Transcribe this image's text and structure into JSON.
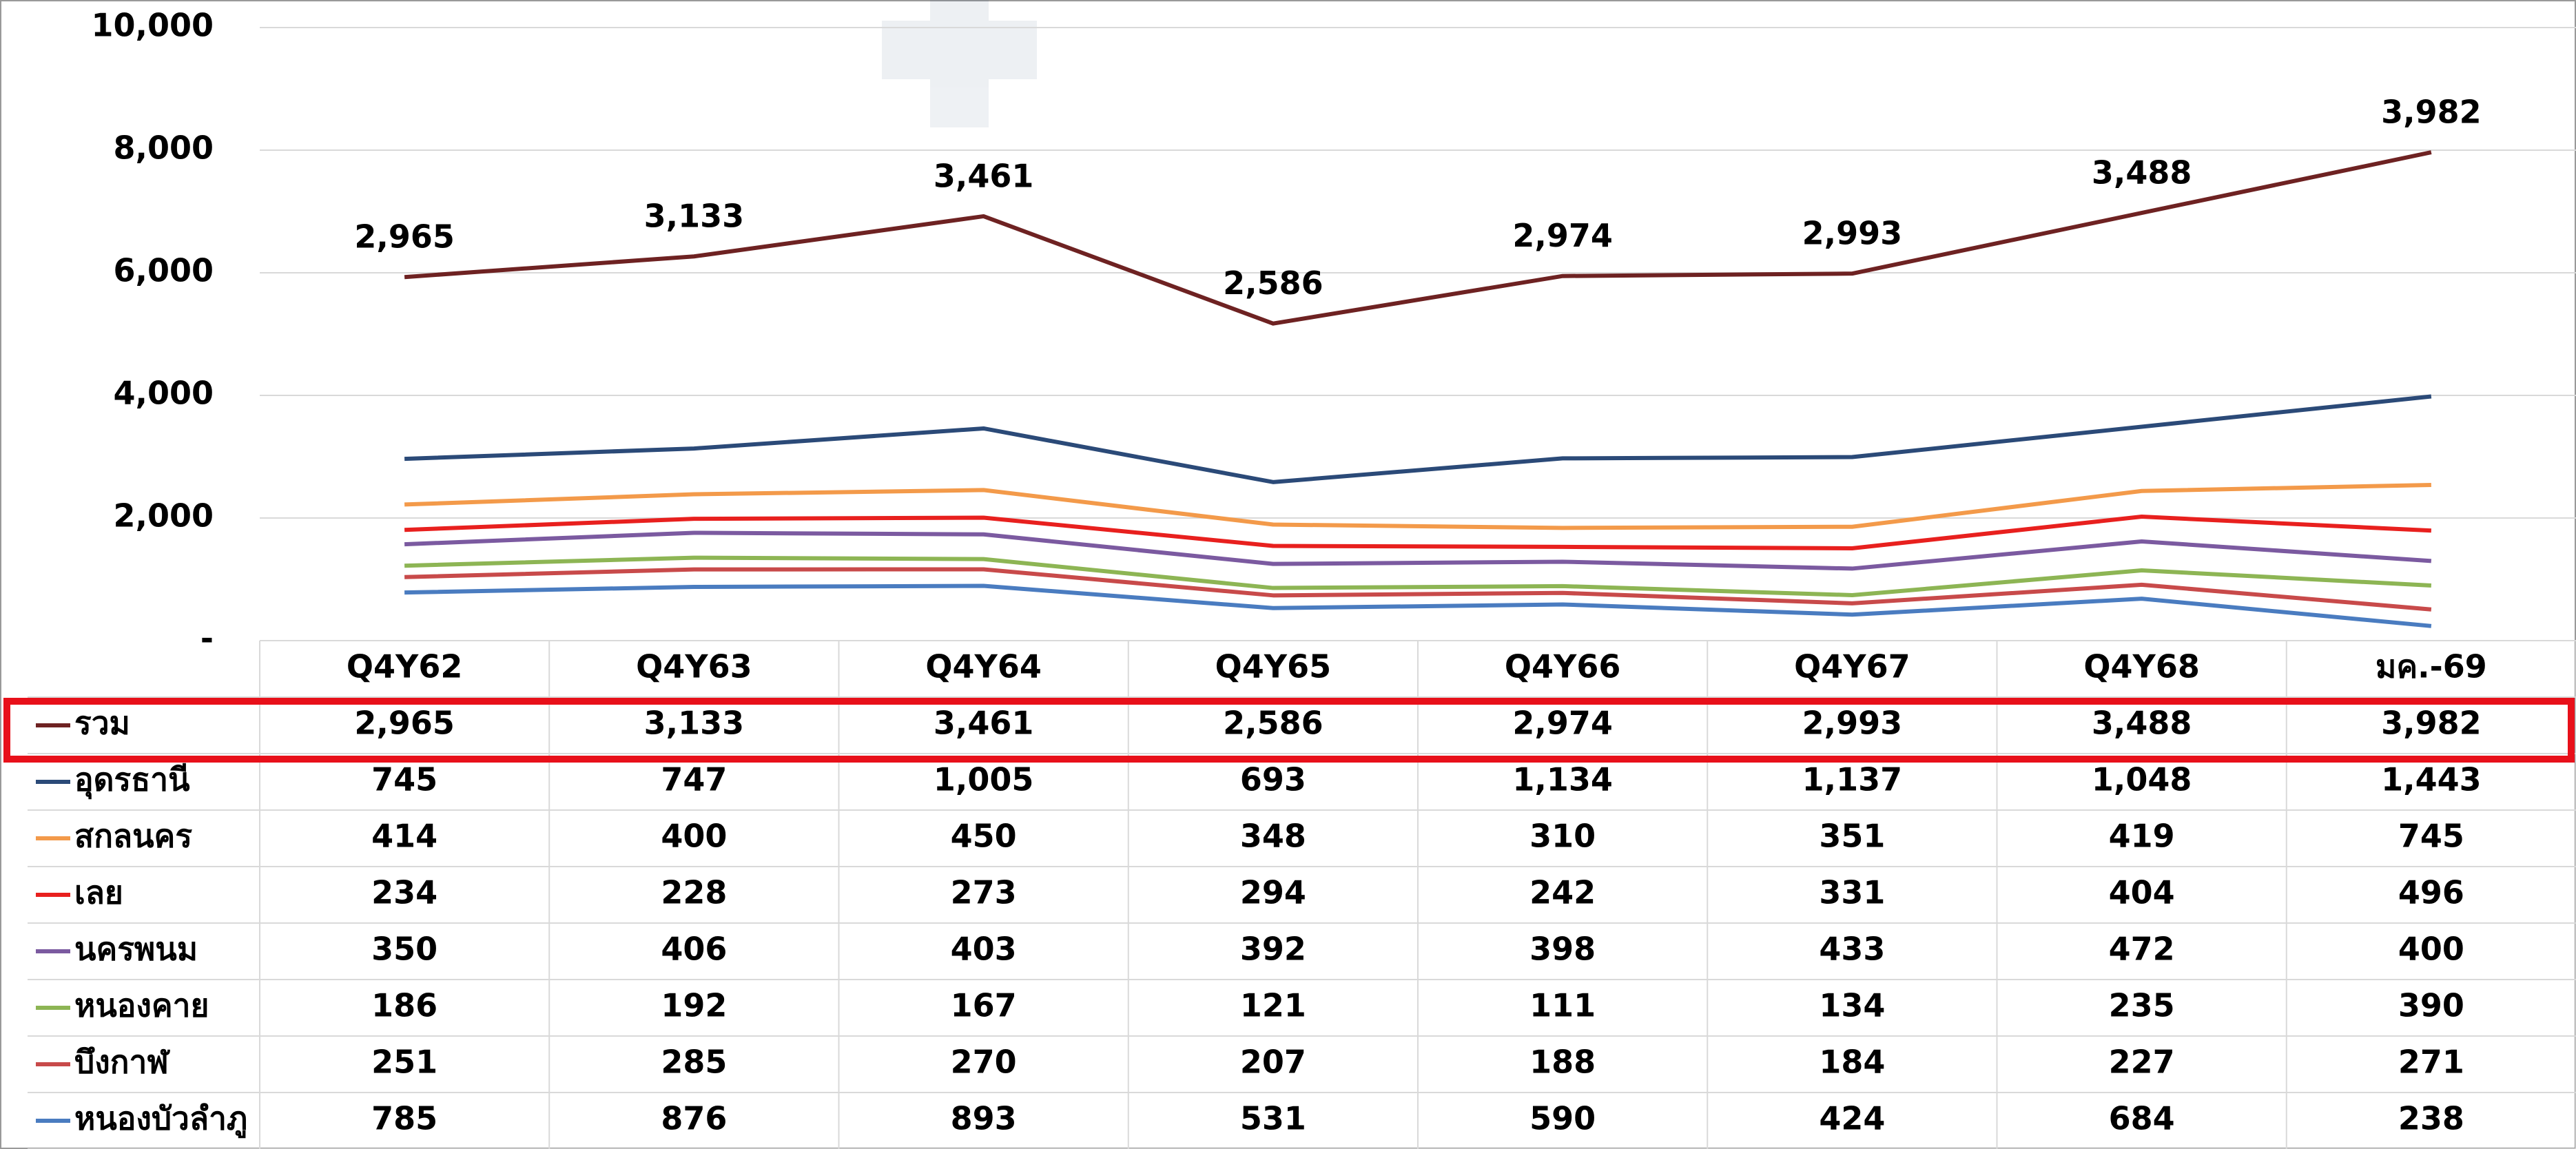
{
  "chart_data": {
    "type": "stacked-line",
    "categories": [
      "Q4Y62",
      "Q4Y63",
      "Q4Y64",
      "Q4Y65",
      "Q4Y66",
      "Q4Y67",
      "Q4Y68",
      "มค.-69"
    ],
    "ylim": [
      0,
      10000
    ],
    "yticks": [
      {
        "value": 0,
        "label": "-"
      },
      {
        "value": 2000,
        "label": "2,000"
      },
      {
        "value": 4000,
        "label": "4,000"
      },
      {
        "value": 6000,
        "label": "6,000"
      },
      {
        "value": 8000,
        "label": "8,000"
      },
      {
        "value": 10000,
        "label": "10,000"
      }
    ],
    "grid": true,
    "series": [
      {
        "name": "รวม",
        "color": "#6e2222",
        "values": [
          2965,
          3133,
          3461,
          2586,
          2974,
          2993,
          3488,
          3982
        ],
        "value_labels": [
          "2,965",
          "3,133",
          "3,461",
          "2,586",
          "2,974",
          "2,993",
          "3,488",
          "3,982"
        ]
      },
      {
        "name": "อุดรธานี",
        "color": "#2b4a78",
        "values": [
          745,
          747,
          1005,
          693,
          1134,
          1137,
          1048,
          1443
        ],
        "value_labels": [
          "745",
          "747",
          "1,005",
          "693",
          "1,134",
          "1,137",
          "1,048",
          "1,443"
        ]
      },
      {
        "name": "สกลนคร",
        "color": "#f39a4a",
        "values": [
          414,
          400,
          450,
          348,
          310,
          351,
          419,
          745
        ]
      },
      {
        "name": "เลย",
        "color": "#e8201e",
        "values": [
          234,
          228,
          273,
          294,
          242,
          331,
          404,
          496
        ]
      },
      {
        "name": "นครพนม",
        "color": "#7b5aa0",
        "values": [
          350,
          406,
          403,
          392,
          398,
          433,
          472,
          400
        ]
      },
      {
        "name": "หนองคาย",
        "color": "#8db554",
        "values": [
          186,
          192,
          167,
          121,
          111,
          134,
          235,
          390
        ]
      },
      {
        "name": "บึงกาฬ",
        "color": "#c84a4a",
        "values": [
          251,
          285,
          270,
          207,
          188,
          184,
          227,
          271
        ]
      },
      {
        "name": "หนองบัวลำภู",
        "color": "#4a7cc0",
        "values": [
          785,
          876,
          893,
          531,
          590,
          424,
          684,
          238
        ]
      }
    ]
  }
}
